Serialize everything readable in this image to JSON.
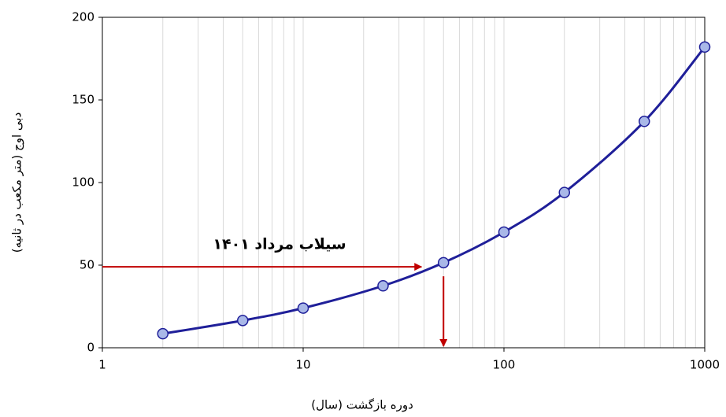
{
  "chart_data": {
    "type": "line",
    "x_label": "دوره بازگشت (سال)",
    "y_label": "دبی اوج (متر مکعب در ثانیه)",
    "x": [
      2,
      5,
      10,
      25,
      50,
      100,
      200,
      500,
      1000
    ],
    "series": [
      {
        "color": "#1f1f99",
        "marker_color": "#a9b8e8",
        "values": [
          8.5,
          16.5,
          24,
          37.5,
          51.5,
          70,
          94,
          137,
          182
        ]
      }
    ],
    "xlim": [
      1,
      1000
    ],
    "xticks": [
      1,
      10,
      100,
      1000
    ],
    "xscale": "log",
    "ylim": [
      0,
      200
    ],
    "yticks": [
      0,
      50,
      100,
      150,
      200
    ],
    "grid": true,
    "annotation": {
      "text": "سیلاب  مرداد ۱۴۰۱",
      "x": 50,
      "y": 49,
      "color": "#c00000"
    }
  }
}
